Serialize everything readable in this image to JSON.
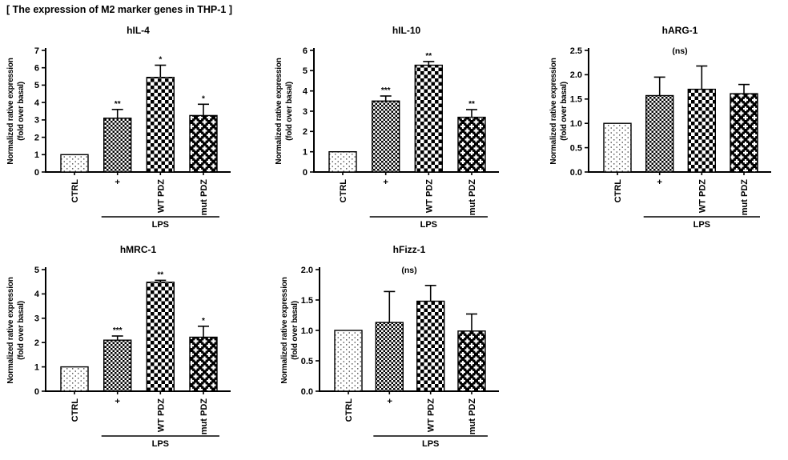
{
  "figure_title": "[ The expression of M2 marker genes in THP-1 ]",
  "ylabel_line1": "Normalized rative expression",
  "ylabel_line2": "(fold over basal)",
  "colors": {
    "ink": "#000000",
    "background": "#ffffff"
  },
  "bar_pattern_names": [
    "stipple-dots",
    "fine-checkerboard",
    "checkerboard",
    "black-cross-diamond"
  ],
  "chart_data": [
    {
      "type": "bar",
      "title": "hIL-4",
      "categories": [
        "CTRL",
        "+",
        "WT PDZ",
        "mut PDZ"
      ],
      "values": [
        1.0,
        3.1,
        5.45,
        3.25
      ],
      "error_top": [
        null,
        3.6,
        6.15,
        3.9
      ],
      "significance": [
        "",
        "**",
        "*",
        "*"
      ],
      "annotation": "",
      "ylim": [
        0,
        7
      ],
      "yticks": [
        0,
        1,
        2,
        3,
        4,
        5,
        6,
        7
      ],
      "ytick_labels": [
        "0",
        "1",
        "2",
        "3",
        "4",
        "5",
        "6",
        "7"
      ],
      "ylabel": "Normalized rative expression (fold over basal)",
      "xlabel": "",
      "grid": false,
      "legend": "none",
      "group_label": "LPS",
      "group_span": [
        1,
        3
      ]
    },
    {
      "type": "bar",
      "title": "hIL-10",
      "categories": [
        "CTRL",
        "+",
        "WT PDZ",
        "mut PDZ"
      ],
      "values": [
        1.0,
        3.5,
        5.27,
        2.7
      ],
      "error_top": [
        null,
        3.75,
        5.45,
        3.08
      ],
      "significance": [
        "",
        "***",
        "**",
        "**"
      ],
      "annotation": "",
      "ylim": [
        0,
        6
      ],
      "yticks": [
        0,
        1,
        2,
        3,
        4,
        5,
        6
      ],
      "ytick_labels": [
        "0",
        "1",
        "2",
        "3",
        "4",
        "5",
        "6"
      ],
      "ylabel": "Normalized rative expression (fold over basal)",
      "xlabel": "",
      "grid": false,
      "legend": "none",
      "group_label": "LPS",
      "group_span": [
        1,
        3
      ]
    },
    {
      "type": "bar",
      "title": "hARG-1",
      "categories": [
        "CTRL",
        "+",
        "WT PDZ",
        "mut PDZ"
      ],
      "values": [
        1.0,
        1.57,
        1.7,
        1.61
      ],
      "error_top": [
        null,
        1.95,
        2.18,
        1.8
      ],
      "significance": [
        "",
        "",
        "",
        ""
      ],
      "annotation": "(ns)",
      "ylim": [
        0,
        2.5
      ],
      "yticks": [
        0,
        0.5,
        1,
        1.5,
        2,
        2.5
      ],
      "ytick_labels": [
        "0.0",
        "0.5",
        "1.0",
        "1.5",
        "2.0",
        "2.5"
      ],
      "ylabel": "Normalized rative expression (fold over basal)",
      "xlabel": "",
      "grid": false,
      "legend": "none",
      "group_label": "LPS",
      "group_span": [
        1,
        3
      ]
    },
    {
      "type": "bar",
      "title": "hMRC-1",
      "categories": [
        "CTRL",
        "+",
        "WT PDZ",
        "mut PDZ"
      ],
      "values": [
        1.0,
        2.1,
        4.48,
        2.22
      ],
      "error_top": [
        null,
        2.27,
        4.56,
        2.67
      ],
      "significance": [
        "",
        "***",
        "**",
        "*"
      ],
      "annotation": "",
      "ylim": [
        0,
        5
      ],
      "yticks": [
        0,
        1,
        2,
        3,
        4,
        5
      ],
      "ytick_labels": [
        "0",
        "1",
        "2",
        "3",
        "4",
        "5"
      ],
      "ylabel": "Normalized rative expression (fold over basal)",
      "xlabel": "",
      "grid": false,
      "legend": "none",
      "group_label": "LPS",
      "group_span": [
        1,
        3
      ]
    },
    {
      "type": "bar",
      "title": "hFizz-1",
      "categories": [
        "CTRL",
        "+",
        "WT PDZ",
        "mut PDZ"
      ],
      "values": [
        1.0,
        1.13,
        1.48,
        0.99
      ],
      "error_top": [
        null,
        1.64,
        1.74,
        1.27
      ],
      "significance": [
        "",
        "",
        "",
        ""
      ],
      "annotation": "(ns)",
      "ylim": [
        0,
        2
      ],
      "yticks": [
        0,
        0.5,
        1,
        1.5,
        2
      ],
      "ytick_labels": [
        "0.0",
        "0.5",
        "1.0",
        "1.5",
        "2.0"
      ],
      "ylabel": "Normalized rative expression (fold over basal)",
      "xlabel": "",
      "grid": false,
      "legend": "none",
      "group_label": "LPS",
      "group_span": [
        1,
        3
      ]
    }
  ]
}
